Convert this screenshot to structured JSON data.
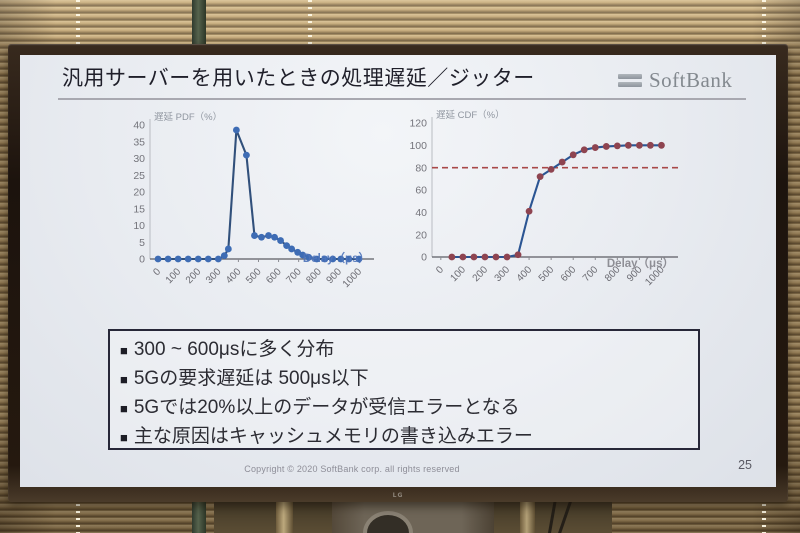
{
  "monitor": {
    "brand_label": "LG"
  },
  "slide": {
    "title": "汎用サーバーを用いたときの処理遅延／ジッター",
    "logo_text": "SoftBank",
    "bullets": {
      "marker": "■",
      "items": [
        "300 ~ 600μsに多く分布",
        "5Gの要求遅延は 500μs以下",
        "5Gでは20%以上のデータが受信エラーとなる",
        "主な原因はキャッシュメモリの書き込みエラー"
      ]
    },
    "footer": {
      "copyright": "Copyright © 2020 SoftBank corp. all rights reserved",
      "page_number": "25"
    }
  },
  "chart_data": [
    {
      "type": "line",
      "name": "delay-pdf",
      "title": "遅延 PDF（%）",
      "xlabel": "Delay（μs）",
      "x": [
        0,
        50,
        100,
        150,
        200,
        250,
        300,
        330,
        350,
        390,
        440,
        480,
        515,
        550,
        580,
        610,
        640,
        665,
        695,
        720,
        750,
        790,
        830,
        870,
        910,
        950,
        1000
      ],
      "values": [
        0,
        0,
        0,
        0,
        0,
        0,
        0,
        1,
        3,
        38.5,
        31,
        7,
        6.5,
        7,
        6.5,
        5.5,
        4,
        3,
        2,
        1.2,
        0.5,
        0,
        0,
        0,
        0,
        0,
        0
      ],
      "xticks": [
        0,
        100,
        200,
        300,
        400,
        500,
        600,
        700,
        800,
        900,
        1000
      ],
      "yticks": [
        0,
        5,
        10,
        15,
        20,
        25,
        30,
        35,
        40
      ],
      "xlim": [
        -40,
        1075
      ],
      "ylim": [
        0,
        40
      ],
      "grid": false,
      "legend": "none",
      "line_color": "#31507b",
      "marker_color": "#3e6cb4",
      "xlabel_color": "#4f74ba",
      "xlabel_on_axis": true
    },
    {
      "type": "line",
      "name": "delay-cdf",
      "title": "遅延 CDF（%）",
      "xlabel": "Delay（μs）",
      "x": [
        50,
        100,
        150,
        200,
        250,
        300,
        350,
        400,
        450,
        500,
        550,
        600,
        650,
        700,
        750,
        800,
        850,
        900,
        950,
        1000
      ],
      "values": [
        0,
        0,
        0,
        0,
        0,
        0,
        2,
        41,
        72,
        78.5,
        85,
        91.5,
        96,
        98,
        99,
        99.5,
        100,
        100,
        100,
        100
      ],
      "xticks": [
        0,
        100,
        200,
        300,
        400,
        500,
        600,
        700,
        800,
        900,
        1000
      ],
      "yticks": [
        0,
        20,
        40,
        60,
        80,
        100,
        120
      ],
      "xlim": [
        -40,
        1075
      ],
      "ylim": [
        0,
        120
      ],
      "grid": false,
      "legend": "none",
      "line_color": "#2b5593",
      "marker_color": "#8e4450",
      "xlabel_color": "#85858c",
      "xlabel_on_axis": false,
      "ref_line": {
        "y": 80,
        "color": "#a84848",
        "style": "dashed"
      }
    }
  ]
}
